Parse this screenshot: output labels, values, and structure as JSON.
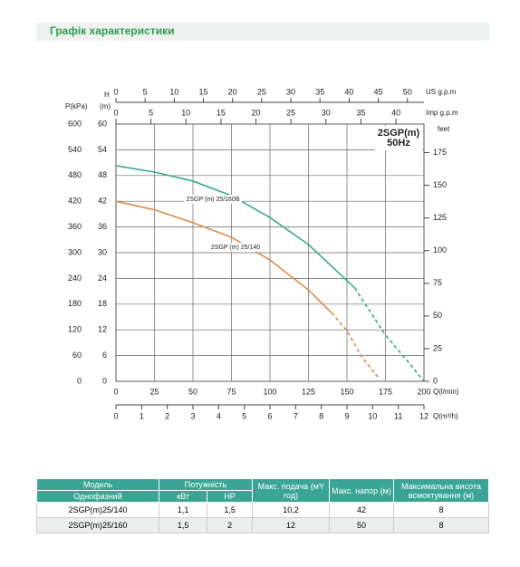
{
  "chart_data": {
    "type": "line",
    "title": "Графік характеристики",
    "xlabel": "Q(l/min)",
    "xlim": [
      0,
      200
    ],
    "xticks": [
      0,
      25,
      50,
      75,
      100,
      125,
      150,
      175,
      200
    ],
    "ylabel": "H",
    "ylabel_unit": "(m)",
    "ylim": [
      0,
      60
    ],
    "yticks": [
      0,
      6,
      12,
      18,
      24,
      30,
      36,
      42,
      48,
      54,
      60
    ],
    "p_label": "P(kPa)",
    "plim": [
      0,
      600
    ],
    "pticks": [
      0,
      60,
      120,
      180,
      240,
      300,
      360,
      420,
      480,
      540,
      600
    ],
    "y2label": "feet",
    "y2lim": [
      0,
      196.85
    ],
    "y2ticks": [
      0,
      25,
      50,
      75,
      100,
      125,
      150,
      175
    ],
    "us_label": "US g.p.m",
    "us_lim": [
      0,
      52.84
    ],
    "us_ticks": [
      0,
      5,
      10,
      15,
      20,
      25,
      30,
      35,
      40,
      45,
      50
    ],
    "imp_label": "Imp g.p.m",
    "imp_lim": [
      0,
      44
    ],
    "imp_ticks": [
      0,
      5,
      10,
      15,
      20,
      25,
      30,
      35,
      40
    ],
    "q2_label": "Q(m³/h)",
    "q2_lim": [
      0,
      12
    ],
    "q2_ticks": [
      0,
      1,
      2,
      3,
      4,
      5,
      6,
      7,
      8,
      9,
      10,
      11,
      12
    ],
    "annotation": [
      "2SGP(m)",
      "50Hz"
    ],
    "grid": true,
    "series": [
      {
        "name": "2SGP (m) 25/160B",
        "color": "#3aa88f",
        "x": [
          0,
          25,
          50,
          75,
          100,
          125,
          150,
          155
        ],
        "values": [
          50.3,
          48.8,
          46.7,
          43.3,
          38.2,
          31.9,
          23.5,
          21.8
        ],
        "dashed_x": [
          155,
          175,
          190,
          200
        ],
        "dashed_values": [
          21.8,
          10.8,
          4.4,
          0
        ]
      },
      {
        "name": "2SGP (m) 25/140",
        "color": "#e0894a",
        "x": [
          0,
          25,
          50,
          75,
          100,
          125,
          140
        ],
        "values": [
          42,
          40,
          37,
          33.6,
          28.3,
          21.3,
          16
        ],
        "dashed_x": [
          140,
          150,
          160,
          170
        ],
        "dashed_values": [
          16,
          11.8,
          5.5,
          1
        ]
      }
    ]
  },
  "table": {
    "header": [
      "Модель",
      "Потужність",
      "Макс. подача (м³/год)",
      "Макс. напор (м)",
      "Максимальна висота всмоктування (м)"
    ],
    "subheader": [
      "Однофазний",
      "кВт",
      "HP"
    ],
    "rows": [
      [
        "2SGP(m)25/140",
        "1,1",
        "1,5",
        "10,2",
        "42",
        "8"
      ],
      [
        "2SGP(m)25/160",
        "1,5",
        "2",
        "12",
        "50",
        "8"
      ]
    ]
  }
}
